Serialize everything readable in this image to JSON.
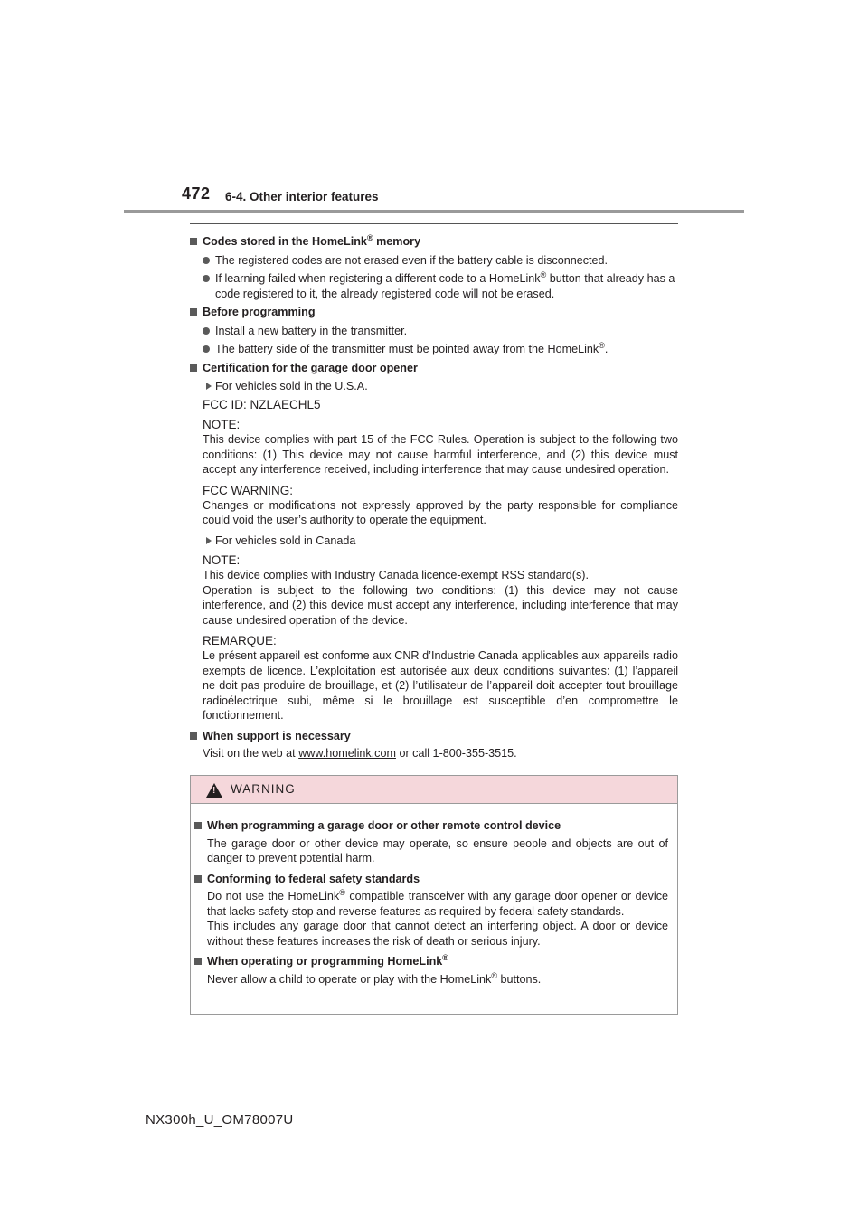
{
  "header": {
    "page_number": "472",
    "section_title": "6-4. Other interior features"
  },
  "content": {
    "s1_heading_a": "Codes stored in the HomeLink",
    "s1_heading_reg": "®",
    "s1_heading_b": " memory",
    "s1_b1": "The registered codes are not erased even if the battery cable is disconnected.",
    "s1_b2_a": "If learning failed when registering a different code to a HomeLink",
    "s1_b2_reg": "®",
    "s1_b2_b": " button that already has a code registered to it, the already registered code will not be erased.",
    "s2_heading": "Before programming",
    "s2_b1": "Install a new battery in the transmitter.",
    "s2_b2_a": "The battery side of the transmitter must be pointed away from the HomeLink",
    "s2_b2_reg": "®",
    "s2_b2_b": ".",
    "s3_heading": "Certification for the garage door opener",
    "s3_usa": "For vehicles sold in the U.S.A.",
    "s3_fcc_id": "FCC ID: NZLAECHL5",
    "s3_note_label": "NOTE:",
    "s3_note_text": "This device complies with part 15 of the FCC Rules. Operation is subject to the following two conditions: (1) This device may not cause harmful interference, and (2) this device must accept any interference received, including interference that may cause undesired operation.",
    "s3_warn_label": "FCC WARNING:",
    "s3_warn_text": "Changes or modifications not expressly approved by the party responsible for compliance could void the user’s authority to operate the equipment.",
    "s3_canada": "For vehicles sold in Canada",
    "s3_ca_note_label": "NOTE:",
    "s3_ca_note_text1": "This device complies with Industry Canada licence-exempt RSS standard(s).",
    "s3_ca_note_text2": "Operation is subject to the following two conditions: (1) this device may not cause interference, and (2) this device must accept any interference, including interference that may cause undesired operation of the device.",
    "s3_remarque_label": "REMARQUE:",
    "s3_remarque_text": "Le présent appareil est conforme aux CNR d’Industrie Canada applicables aux appareils radio exempts de licence. L’exploitation est autorisée aux deux conditions suivantes: (1) l’appareil ne doit pas produire de brouillage, et (2) l’utilisateur de l’appareil doit accepter tout brouillage radioélectrique subi, même si le brouillage est susceptible d’en compromettre le fonctionnement.",
    "s4_heading": "When support is necessary",
    "s4_text_a": "Visit on the web at ",
    "s4_link": "www.homelink.com",
    "s4_text_b": " or call 1-800-355-3515."
  },
  "warning": {
    "title": "WARNING",
    "h1": "When programming a garage door or other remote control device",
    "t1": "The garage door or other device may operate, so ensure people and objects are out of danger to prevent potential harm.",
    "h2": "Conforming to federal safety standards",
    "t2_a": "Do not use the HomeLink",
    "t2_reg": "®",
    "t2_b": " compatible transceiver with any garage door opener or device that lacks safety stop and reverse features as required by federal safety standards.",
    "t2_c": "This includes any garage door that cannot detect an interfering object. A door or device without these features increases the risk of death or serious injury.",
    "h3_a": "When operating or programming HomeLink",
    "h3_reg": "®",
    "t3_a": "Never allow a child to operate or play with the HomeLink",
    "t3_reg": "®",
    "t3_b": " buttons."
  },
  "footer": {
    "model_code": "NX300h_U_OM78007U"
  }
}
